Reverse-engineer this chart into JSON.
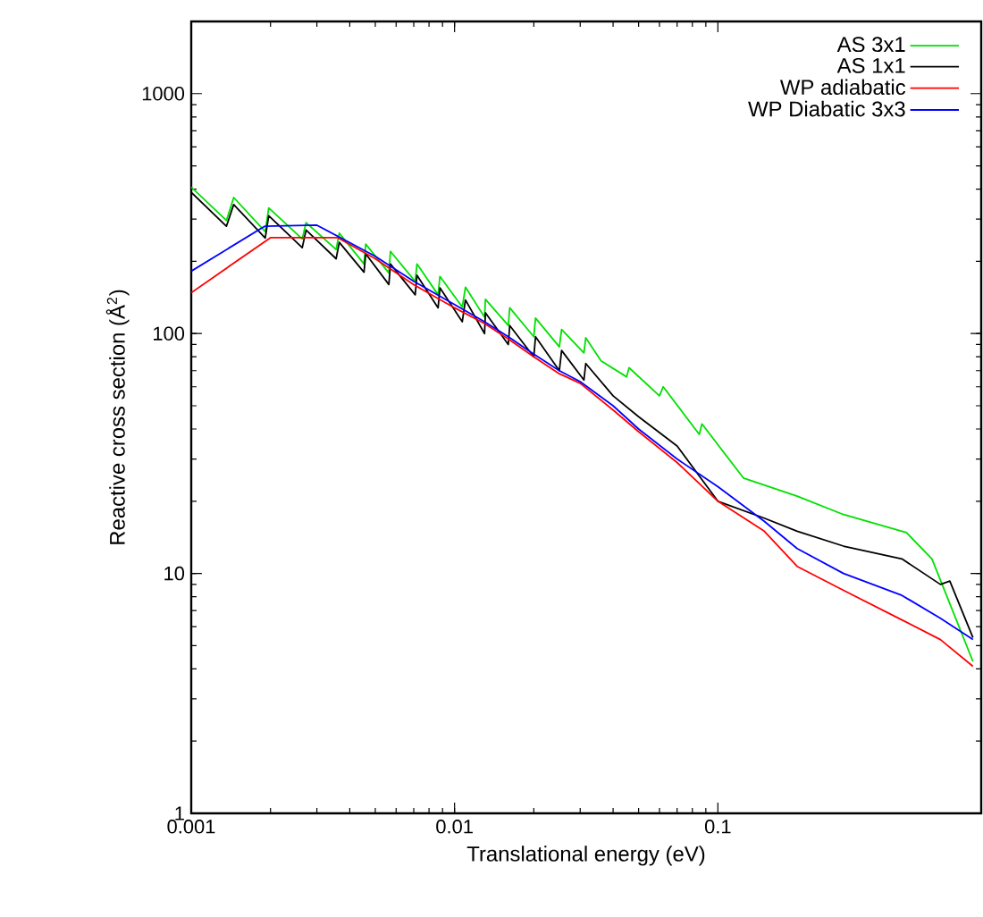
{
  "chart_data": {
    "type": "line",
    "xlabel": "Translational energy (eV)",
    "ylabel": "Reactive cross section (Å$^{2}$)",
    "log": "xy",
    "xlim": [
      0.001,
      1
    ],
    "ylim": [
      1,
      2000
    ],
    "xticks": [
      0.001,
      0.01,
      0.1
    ],
    "yticks": [
      1,
      10,
      100,
      1000
    ],
    "legend": "top right",
    "marker": "none",
    "line_style": "solid",
    "grid": false,
    "series": [
      {
        "name": "AS 3x1",
        "color": "#00e000",
        "x": [
          0.001,
          0.00136,
          0.00145,
          0.00191,
          0.00197,
          0.00264,
          0.00273,
          0.00355,
          0.00365,
          0.00453,
          0.0046,
          0.00563,
          0.00571,
          0.00709,
          0.0072,
          0.00866,
          0.0088,
          0.0107,
          0.011,
          0.013,
          0.0131,
          0.016,
          0.0162,
          0.02,
          0.0203,
          0.025,
          0.0255,
          0.031,
          0.0315,
          0.036,
          0.045,
          0.046,
          0.06,
          0.062,
          0.085,
          0.087,
          0.125,
          0.2,
          0.3,
          0.52,
          0.65,
          0.93
        ],
        "values": [
          408,
          296,
          369,
          266,
          334,
          248,
          290,
          224,
          262,
          195,
          236,
          179,
          220,
          165,
          195,
          145,
          173,
          129,
          156,
          117,
          139,
          108,
          128,
          97,
          116,
          88,
          104,
          83,
          96,
          77,
          66,
          72,
          55,
          60,
          38,
          42,
          25,
          21,
          17.6,
          14.8,
          11.5,
          4.3
        ]
      },
      {
        "name": "AS 1x1",
        "color": "#000000",
        "x": [
          0.001,
          0.00136,
          0.00145,
          0.00191,
          0.00197,
          0.00264,
          0.00273,
          0.00355,
          0.00365,
          0.00453,
          0.0046,
          0.00563,
          0.00571,
          0.00709,
          0.0072,
          0.00866,
          0.0088,
          0.0107,
          0.011,
          0.013,
          0.0131,
          0.016,
          0.0162,
          0.02,
          0.0203,
          0.025,
          0.0255,
          0.031,
          0.0315,
          0.04,
          0.05,
          0.07,
          0.1,
          0.15,
          0.2,
          0.3,
          0.5,
          0.7,
          0.76,
          0.93
        ],
        "values": [
          388,
          280,
          345,
          250,
          310,
          228,
          270,
          205,
          240,
          180,
          215,
          160,
          195,
          145,
          175,
          128,
          155,
          112,
          138,
          100,
          122,
          90,
          108,
          80,
          97,
          70,
          85,
          64,
          75,
          55,
          45,
          34,
          20,
          17,
          15,
          13,
          11.5,
          9,
          9.3,
          5.4
        ]
      },
      {
        "name": "WP adiabatic",
        "color": "#ff0000",
        "x": [
          0.001,
          0.002,
          0.0036,
          0.005,
          0.007,
          0.01,
          0.013,
          0.016,
          0.02,
          0.025,
          0.03,
          0.04,
          0.05,
          0.07,
          0.1,
          0.15,
          0.2,
          0.3,
          0.5,
          0.7,
          0.93
        ],
        "values": [
          148,
          251,
          251,
          205,
          160,
          128,
          110,
          95,
          80,
          68,
          62,
          48,
          39,
          29,
          20,
          15,
          10.7,
          8.5,
          6.4,
          5.3,
          4.1
        ]
      },
      {
        "name": "WP Diabatic 3x3",
        "color": "#0000ff",
        "x": [
          0.001,
          0.0019,
          0.003,
          0.005,
          0.007,
          0.01,
          0.013,
          0.016,
          0.02,
          0.025,
          0.03,
          0.04,
          0.05,
          0.07,
          0.1,
          0.15,
          0.2,
          0.3,
          0.5,
          0.7,
          0.93
        ],
        "values": [
          182,
          280,
          283,
          210,
          165,
          132,
          112,
          97,
          82,
          70,
          63,
          50,
          40,
          30,
          23,
          16.5,
          12.7,
          10,
          8.1,
          6.5,
          5.3
        ]
      }
    ]
  }
}
